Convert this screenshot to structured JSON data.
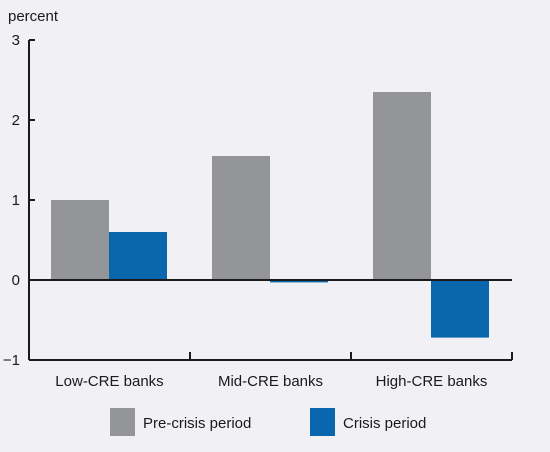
{
  "chart_data": {
    "type": "bar",
    "ylabel": "percent",
    "categories": [
      "Low-CRE banks",
      "Mid-CRE banks",
      "High-CRE banks"
    ],
    "series": [
      {
        "name": "Pre-crisis period",
        "values": [
          1.0,
          1.55,
          2.35
        ],
        "color": "#939598"
      },
      {
        "name": "Crisis period",
        "values": [
          0.6,
          -0.03,
          -0.72
        ],
        "color": "#0a66ad"
      }
    ],
    "ylim": [
      -1,
      3
    ],
    "yticks": [
      3,
      2,
      1,
      0,
      -1
    ],
    "ytick_labels": [
      "3",
      "2",
      "1",
      "0",
      "−1"
    ],
    "grid": false,
    "legend_position": "bottom"
  }
}
